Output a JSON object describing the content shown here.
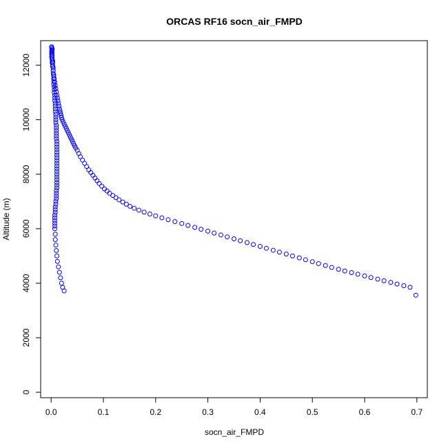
{
  "chart_data": {
    "type": "scatter",
    "title": "ORCAS RF16 socn_air_FMPD",
    "xlabel": "socn_air_FMPD",
    "ylabel": "Altitude (m)",
    "xlim": [
      -0.02,
      0.72
    ],
    "ylim": [
      -200,
      12900
    ],
    "xticks": [
      0.0,
      0.1,
      0.2,
      0.3,
      0.4,
      0.5,
      0.6,
      0.7
    ],
    "xtick_labels": [
      "0.0",
      "0.1",
      "0.2",
      "0.3",
      "0.4",
      "0.5",
      "0.6",
      "0.7"
    ],
    "yticks": [
      0,
      2000,
      4000,
      6000,
      8000,
      10000,
      12000
    ],
    "ytick_labels": [
      "0",
      "2000",
      "4000",
      "6000",
      "8000",
      "10000",
      "12000"
    ],
    "marker": "open-circle",
    "color": "#0000ff",
    "grid": false,
    "series": [
      {
        "x": [
          0.001,
          0.001,
          0.002,
          0.002,
          0.001,
          0.001,
          0.002,
          0.001,
          0.002,
          0.001,
          0.002,
          0.002,
          0.003,
          0.003,
          0.003,
          0.004,
          0.004,
          0.004,
          0.005,
          0.005,
          0.005,
          0.005,
          0.006,
          0.006,
          0.006,
          0.007,
          0.007,
          0.007,
          0.008,
          0.008,
          0.008,
          0.008,
          0.009,
          0.009,
          0.009,
          0.009,
          0.01,
          0.01,
          0.01,
          0.01,
          0.01,
          0.01,
          0.011,
          0.011,
          0.011,
          0.011,
          0.011,
          0.011,
          0.011,
          0.011,
          0.011,
          0.011,
          0.011,
          0.011,
          0.011,
          0.011,
          0.011,
          0.011,
          0.011,
          0.011,
          0.01,
          0.01,
          0.01,
          0.01,
          0.009,
          0.009,
          0.008,
          0.008,
          0.008,
          0.007,
          0.007,
          0.007,
          0.007,
          0.007,
          0.007,
          0.008,
          0.008,
          0.009,
          0.01,
          0.011,
          0.012,
          0.014,
          0.016,
          0.018,
          0.02,
          0.022,
          0.025
        ],
        "y": [
          12680,
          12640,
          12600,
          12560,
          12520,
          12480,
          12440,
          12400,
          12350,
          12300,
          12250,
          12200,
          12150,
          12100,
          12000,
          11900,
          11800,
          11700,
          11600,
          11500,
          11400,
          11300,
          11200,
          11100,
          11000,
          10900,
          10800,
          10700,
          10600,
          10500,
          10400,
          10300,
          10200,
          10100,
          10000,
          9900,
          9800,
          9700,
          9600,
          9500,
          9400,
          9300,
          9200,
          9100,
          9000,
          8900,
          8800,
          8700,
          8600,
          8500,
          8400,
          8300,
          8200,
          8100,
          8000,
          7900,
          7800,
          7700,
          7600,
          7500,
          7400,
          7300,
          7200,
          7100,
          7000,
          6900,
          6800,
          6700,
          6600,
          6500,
          6400,
          6300,
          6200,
          6100,
          6000,
          5800,
          5600,
          5400,
          5200,
          5000,
          4800,
          4600,
          4400,
          4200,
          4000,
          3850,
          3720
        ]
      },
      {
        "x": [
          0.002,
          0.003,
          0.004,
          0.005,
          0.006,
          0.007,
          0.008,
          0.009,
          0.01,
          0.011,
          0.012,
          0.013,
          0.014,
          0.015,
          0.016,
          0.017,
          0.018,
          0.019,
          0.02,
          0.021,
          0.023,
          0.025,
          0.027,
          0.029,
          0.031,
          0.033,
          0.035,
          0.037,
          0.039,
          0.041,
          0.043,
          0.045,
          0.047,
          0.05,
          0.053,
          0.056,
          0.06,
          0.064,
          0.068,
          0.072,
          0.076,
          0.08,
          0.084,
          0.088,
          0.092,
          0.097,
          0.102,
          0.107,
          0.112,
          0.118,
          0.124,
          0.13,
          0.137,
          0.144,
          0.151,
          0.159,
          0.168,
          0.178,
          0.189,
          0.2,
          0.212,
          0.224,
          0.237,
          0.25,
          0.262,
          0.275,
          0.287,
          0.3,
          0.312,
          0.325,
          0.337,
          0.35,
          0.362,
          0.375,
          0.387,
          0.4,
          0.412,
          0.425,
          0.437,
          0.45,
          0.462,
          0.475,
          0.487,
          0.5,
          0.512,
          0.525,
          0.537,
          0.55,
          0.562,
          0.575,
          0.587,
          0.6,
          0.612,
          0.625,
          0.637,
          0.65,
          0.662,
          0.675,
          0.687,
          0.698
        ],
        "y": [
          12100,
          11950,
          11800,
          11650,
          11500,
          11380,
          11260,
          11140,
          11020,
          10900,
          10800,
          10700,
          10600,
          10500,
          10400,
          10320,
          10240,
          10160,
          10080,
          10000,
          9920,
          9840,
          9760,
          9680,
          9600,
          9520,
          9440,
          9360,
          9280,
          9200,
          9120,
          9040,
          8960,
          8880,
          8760,
          8640,
          8520,
          8400,
          8280,
          8160,
          8060,
          7960,
          7860,
          7760,
          7660,
          7560,
          7460,
          7380,
          7300,
          7220,
          7140,
          7060,
          6980,
          6900,
          6820,
          6750,
          6680,
          6610,
          6540,
          6470,
          6400,
          6330,
          6260,
          6190,
          6120,
          6050,
          5980,
          5910,
          5840,
          5770,
          5700,
          5630,
          5560,
          5490,
          5420,
          5350,
          5280,
          5210,
          5140,
          5070,
          5000,
          4930,
          4860,
          4790,
          4720,
          4650,
          4580,
          4510,
          4450,
          4390,
          4330,
          4270,
          4210,
          4150,
          4090,
          4030,
          3970,
          3910,
          3850,
          3560
        ]
      }
    ]
  }
}
